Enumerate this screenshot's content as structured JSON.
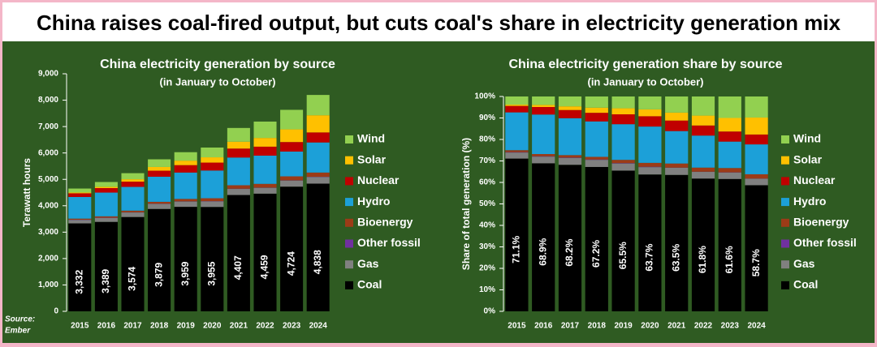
{
  "title": "China raises coal-fired output, but cuts coal's share in electricity generation mix",
  "chart_data": [
    {
      "type": "bar",
      "stacked": true,
      "title": "China electricity generation by source",
      "subtitle": "(in January to October)",
      "y_label": "Terawatt hours",
      "source_label": "Source:",
      "source": "Ember",
      "categories": [
        "2015",
        "2016",
        "2017",
        "2018",
        "2019",
        "2020",
        "2021",
        "2022",
        "2023",
        "2024"
      ],
      "ylim": [
        0,
        9000
      ],
      "yticks": [
        0,
        {
          "value": 1000,
          "label": "1,000"
        },
        {
          "value": 2000,
          "label": "2,000"
        },
        {
          "value": 3000,
          "label": "3,000"
        },
        {
          "value": 4000,
          "label": "4,000"
        },
        {
          "value": 5000,
          "label": "5,000"
        },
        {
          "value": 6000,
          "label": "6,000"
        },
        {
          "value": 7000,
          "label": "7,000"
        },
        {
          "value": 8000,
          "label": "8,000"
        },
        {
          "value": 9000,
          "label": "9,000"
        }
      ],
      "series": [
        {
          "name": "Coal",
          "color": "#000000",
          "values": [
            3332,
            3389,
            3574,
            3879,
            3959,
            3955,
            4407,
            4459,
            4724,
            4838
          ],
          "value_labels": [
            "3,332",
            "3,389",
            "3,574",
            "3,879",
            "3,959",
            "3,955",
            "4,407",
            "4,459",
            "4,724",
            "4,838"
          ]
        },
        {
          "name": "Gas",
          "color": "#808080",
          "values": [
            130,
            150,
            170,
            190,
            200,
            210,
            230,
            220,
            230,
            250
          ]
        },
        {
          "name": "Other fossil",
          "color": "#7030a0",
          "values": [
            10,
            10,
            10,
            10,
            10,
            10,
            10,
            10,
            10,
            10
          ]
        },
        {
          "name": "Bioenergy",
          "color": "#9c3b17",
          "values": [
            40,
            50,
            60,
            70,
            90,
            110,
            130,
            140,
            150,
            160
          ]
        },
        {
          "name": "Hydro",
          "color": "#1ca0d8",
          "values": [
            820,
            900,
            900,
            950,
            1000,
            1050,
            1050,
            1070,
            940,
            1140
          ]
        },
        {
          "name": "Nuclear",
          "color": "#c00000",
          "values": [
            140,
            170,
            200,
            230,
            280,
            300,
            340,
            340,
            360,
            380
          ]
        },
        {
          "name": "Solar",
          "color": "#ffc000",
          "values": [
            30,
            50,
            90,
            140,
            170,
            200,
            260,
            330,
            480,
            650
          ]
        },
        {
          "name": "Wind",
          "color": "#92d050",
          "values": [
            150,
            180,
            230,
            290,
            320,
            370,
            520,
            620,
            740,
            770
          ]
        }
      ]
    },
    {
      "type": "bar",
      "stacked": true,
      "title": "China electricity generation share by source",
      "subtitle": "(in January to October)",
      "y_label": "Share of total generation (%)",
      "categories": [
        "2015",
        "2016",
        "2017",
        "2018",
        "2019",
        "2020",
        "2021",
        "2022",
        "2023",
        "2024"
      ],
      "ylim": [
        0,
        100
      ],
      "yticks": [
        {
          "value": 0,
          "label": "0%"
        },
        {
          "value": 10,
          "label": "10%"
        },
        {
          "value": 20,
          "label": "20%"
        },
        {
          "value": 30,
          "label": "30%"
        },
        {
          "value": 40,
          "label": "40%"
        },
        {
          "value": 50,
          "label": "50%"
        },
        {
          "value": 60,
          "label": "60%"
        },
        {
          "value": 70,
          "label": "70%"
        },
        {
          "value": 80,
          "label": "80%"
        },
        {
          "value": 90,
          "label": "90%"
        },
        {
          "value": 100,
          "label": "100%"
        }
      ],
      "series": [
        {
          "name": "Coal",
          "color": "#000000",
          "values": [
            71.1,
            68.9,
            68.2,
            67.2,
            65.5,
            63.7,
            63.5,
            61.8,
            61.6,
            58.7
          ],
          "value_labels": [
            "71.1%",
            "68.9%",
            "68.2%",
            "67.2%",
            "65.5%",
            "63.7%",
            "63.5%",
            "61.8%",
            "61.6%",
            "58.7%"
          ]
        },
        {
          "name": "Gas",
          "color": "#808080",
          "values": [
            2.8,
            3.1,
            3.2,
            3.3,
            3.3,
            3.4,
            3.3,
            3.1,
            3.0,
            3.0
          ]
        },
        {
          "name": "Other fossil",
          "color": "#7030a0",
          "values": [
            0.2,
            0.2,
            0.2,
            0.2,
            0.2,
            0.2,
            0.1,
            0.1,
            0.1,
            0.1
          ]
        },
        {
          "name": "Bioenergy",
          "color": "#9c3b17",
          "values": [
            0.9,
            1.0,
            1.1,
            1.2,
            1.5,
            1.8,
            1.9,
            1.9,
            2.0,
            2.0
          ]
        },
        {
          "name": "Hydro",
          "color": "#1ca0d8",
          "values": [
            17.6,
            18.4,
            17.2,
            16.5,
            16.6,
            16.9,
            15.1,
            14.9,
            12.3,
            13.9
          ]
        },
        {
          "name": "Nuclear",
          "color": "#c00000",
          "values": [
            3.0,
            3.5,
            3.8,
            4.0,
            4.6,
            4.8,
            4.9,
            4.7,
            4.7,
            4.6
          ]
        },
        {
          "name": "Solar",
          "color": "#ffc000",
          "values": [
            0.6,
            1.0,
            1.7,
            2.4,
            2.8,
            3.2,
            3.7,
            4.6,
            6.3,
            7.9
          ]
        },
        {
          "name": "Wind",
          "color": "#92d050",
          "values": [
            3.8,
            3.9,
            4.6,
            5.2,
            5.5,
            6.0,
            7.5,
            8.9,
            10.0,
            9.8
          ]
        }
      ]
    }
  ]
}
